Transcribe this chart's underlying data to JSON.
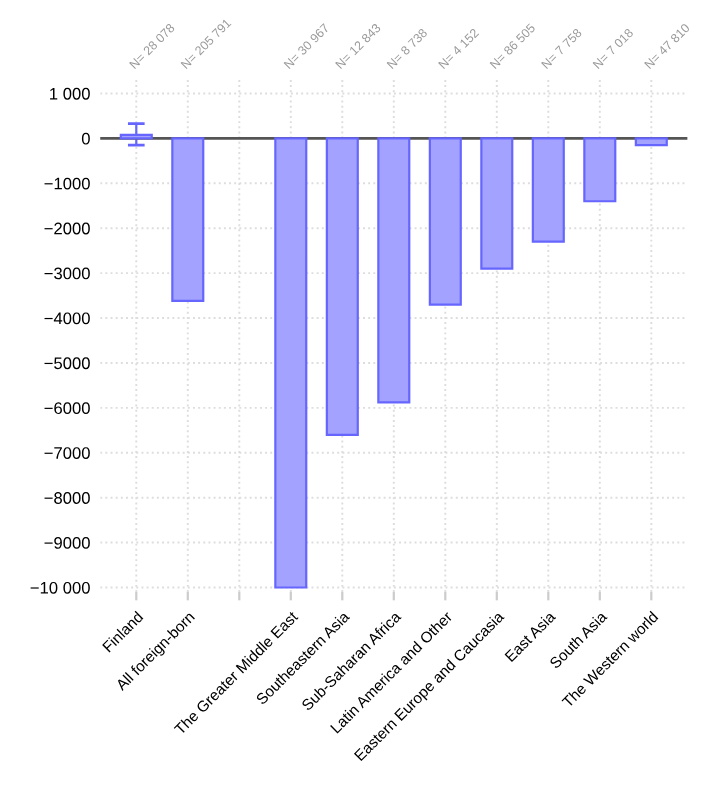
{
  "chart_data": {
    "type": "bar",
    "categories": [
      "Finland",
      "All foreign-born",
      null,
      "The Greater Middle East",
      "Southeastern Asia",
      "Sub-Saharan Africa",
      "Latin America and Other",
      "Eastern Europe and Caucasia",
      "East Asia",
      "South Asia",
      "The Western world"
    ],
    "values": [
      80,
      -3620,
      null,
      -10000,
      -6600,
      -5880,
      -3700,
      -2900,
      -2300,
      -1400,
      -150
    ],
    "errors": [
      [
        -150,
        330
      ],
      null,
      null,
      null,
      null,
      null,
      null,
      null,
      null,
      null,
      null
    ],
    "color": "#a3a3ff",
    "ylim": [
      -10100,
      1300
    ],
    "yticks": [
      {
        "value": 1000,
        "label": "1 000"
      },
      {
        "value": 0,
        "label": "0"
      },
      {
        "value": -1000,
        "label": "−1000"
      },
      {
        "value": -2000,
        "label": "−2000"
      },
      {
        "value": -3000,
        "label": "−3000"
      },
      {
        "value": -4000,
        "label": "−4000"
      },
      {
        "value": -5000,
        "label": "−5000"
      },
      {
        "value": -6000,
        "label": "−6000"
      },
      {
        "value": -7000,
        "label": "−7000"
      },
      {
        "value": -8000,
        "label": "−8000"
      },
      {
        "value": -9000,
        "label": "−9000"
      },
      {
        "value": -10000,
        "label": "−10 000"
      }
    ],
    "ref_lines": [
      {
        "axis": "y",
        "value": 0,
        "color": "#555555"
      }
    ],
    "grid": true,
    "annotations": [
      "N= 28 078",
      "N= 205 791",
      "N= 30 967",
      "N= 12 843",
      "N= 8 738",
      "N= 4 152",
      "N= 86 505",
      "N= 7 758",
      "N= 7 018",
      "N= 47 810"
    ]
  }
}
